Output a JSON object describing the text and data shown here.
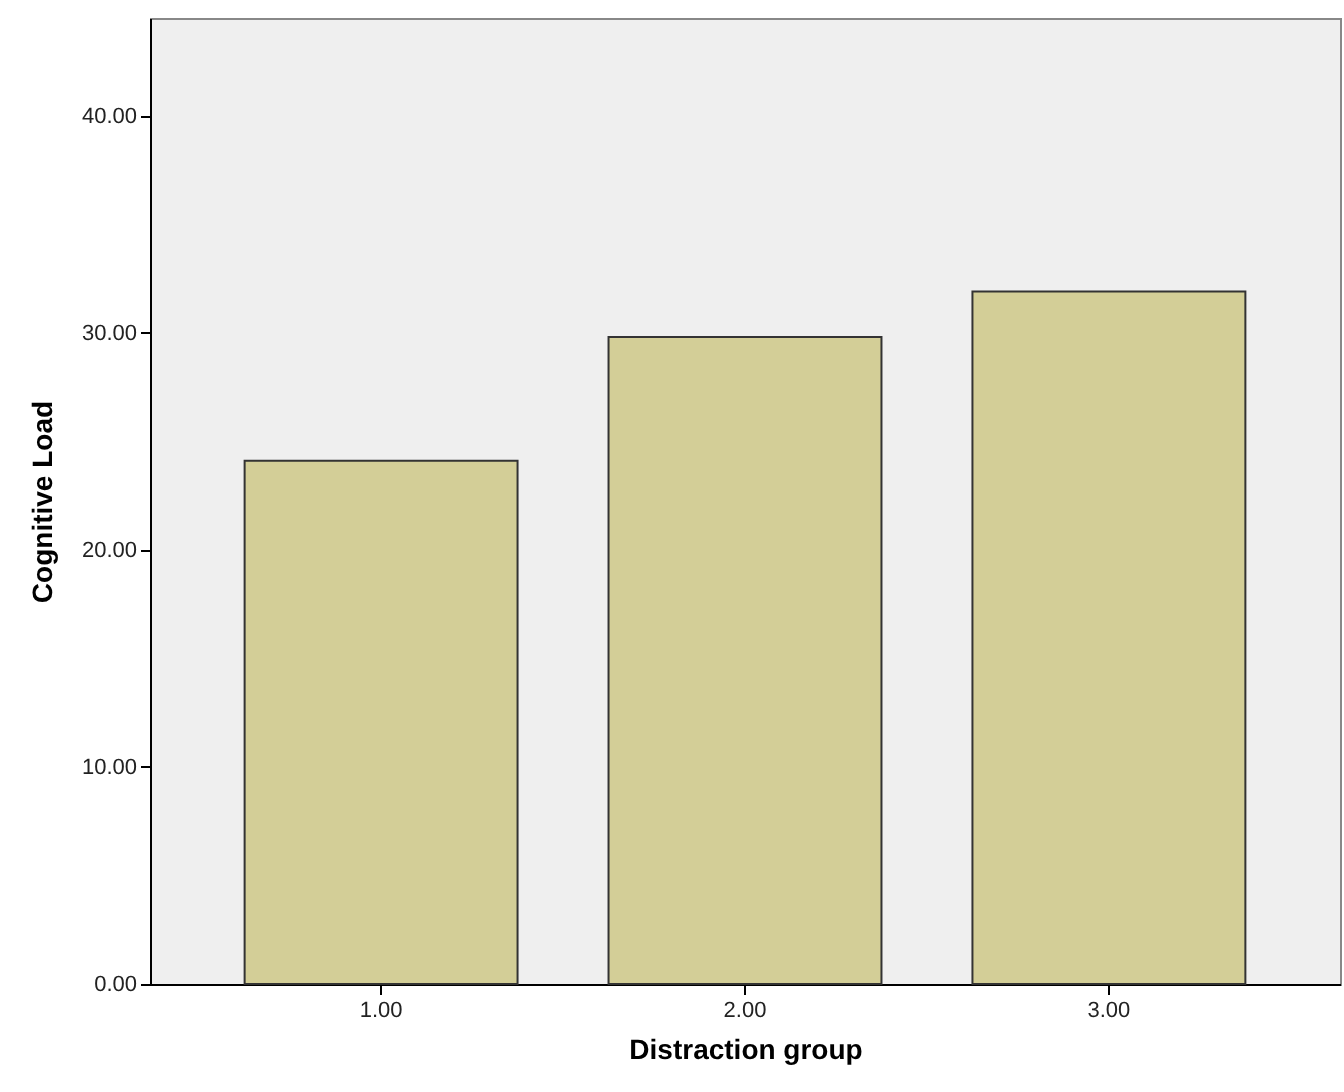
{
  "chart_data": {
    "type": "bar",
    "xlabel": "Distraction group",
    "ylabel": "Cognitive Load",
    "categories": [
      "1.00",
      "2.00",
      "3.00"
    ],
    "values": [
      24.1,
      29.8,
      31.9
    ],
    "color": "#d3ce97",
    "ylim": [
      0,
      44.5
    ],
    "yticks": [
      {
        "value": 0,
        "label": "0.00"
      },
      {
        "value": 10,
        "label": "10.00"
      },
      {
        "value": 20,
        "label": "20.00"
      },
      {
        "value": 30,
        "label": "30.00"
      },
      {
        "value": 40,
        "label": "40.00"
      }
    ],
    "grid": false
  }
}
